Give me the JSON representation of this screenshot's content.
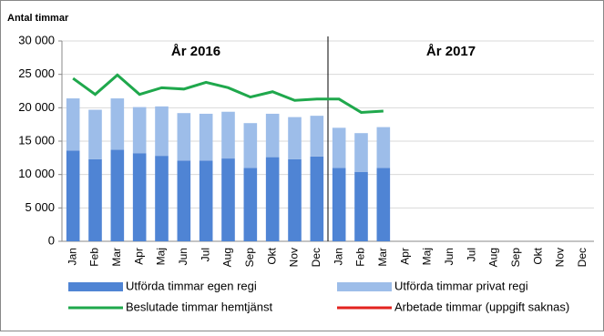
{
  "chart_data": {
    "type": "bar",
    "stacked": true,
    "y_label": "Antal timmar",
    "annotations": [
      "År 2016",
      "År 2017"
    ],
    "categories": [
      "Jan",
      "Feb",
      "Mar",
      "Apr",
      "Maj",
      "Jun",
      "Jul",
      "Aug",
      "Sep",
      "Okt",
      "Nov",
      "Dec",
      "Jan",
      "Feb",
      "Mar",
      "Apr",
      "Maj",
      "Jun",
      "Jul",
      "Aug",
      "Sep",
      "Okt",
      "Nov",
      "Dec"
    ],
    "series": [
      {
        "name": "Utförda timmar  egen regi",
        "type": "bar",
        "color": "#4f84d4",
        "values": [
          13600,
          12300,
          13700,
          13200,
          12800,
          12100,
          12100,
          12400,
          11000,
          12600,
          12300,
          12700,
          11000,
          10400,
          11000,
          null,
          null,
          null,
          null,
          null,
          null,
          null,
          null,
          null
        ]
      },
      {
        "name": "Utförda timmar  privat regi",
        "type": "bar",
        "color": "#9dbde9",
        "values": [
          7800,
          7400,
          7700,
          6900,
          7400,
          7100,
          7000,
          7000,
          6700,
          6500,
          6300,
          6100,
          6000,
          5800,
          6100,
          null,
          null,
          null,
          null,
          null,
          null,
          null,
          null,
          null
        ]
      },
      {
        "name": "Beslutade timmar  hemtjänst",
        "type": "line",
        "color": "#1fa84c",
        "values": [
          24400,
          22000,
          24900,
          22000,
          23000,
          22800,
          23800,
          23000,
          21600,
          22400,
          21100,
          21300,
          21300,
          19300,
          19500,
          null,
          null,
          null,
          null,
          null,
          null,
          null,
          null,
          null
        ]
      },
      {
        "name": "Arbetade timmar  (uppgift saknas)",
        "type": "line",
        "color": "#e3231f",
        "values": [
          null,
          null,
          null,
          null,
          null,
          null,
          null,
          null,
          null,
          null,
          null,
          null,
          null,
          null,
          null,
          null,
          null,
          null,
          null,
          null,
          null,
          null,
          null,
          null
        ]
      }
    ],
    "ylim": [
      0,
      30000
    ],
    "yticks": [
      {
        "value": 0,
        "label": "0"
      },
      {
        "value": 5000,
        "label": "5 000"
      },
      {
        "value": 10000,
        "label": "10 000"
      },
      {
        "value": 15000,
        "label": "15 000"
      },
      {
        "value": 20000,
        "label": "20 000"
      },
      {
        "value": 25000,
        "label": "25 000"
      },
      {
        "value": 30000,
        "label": "30 000"
      }
    ],
    "grid": true
  }
}
